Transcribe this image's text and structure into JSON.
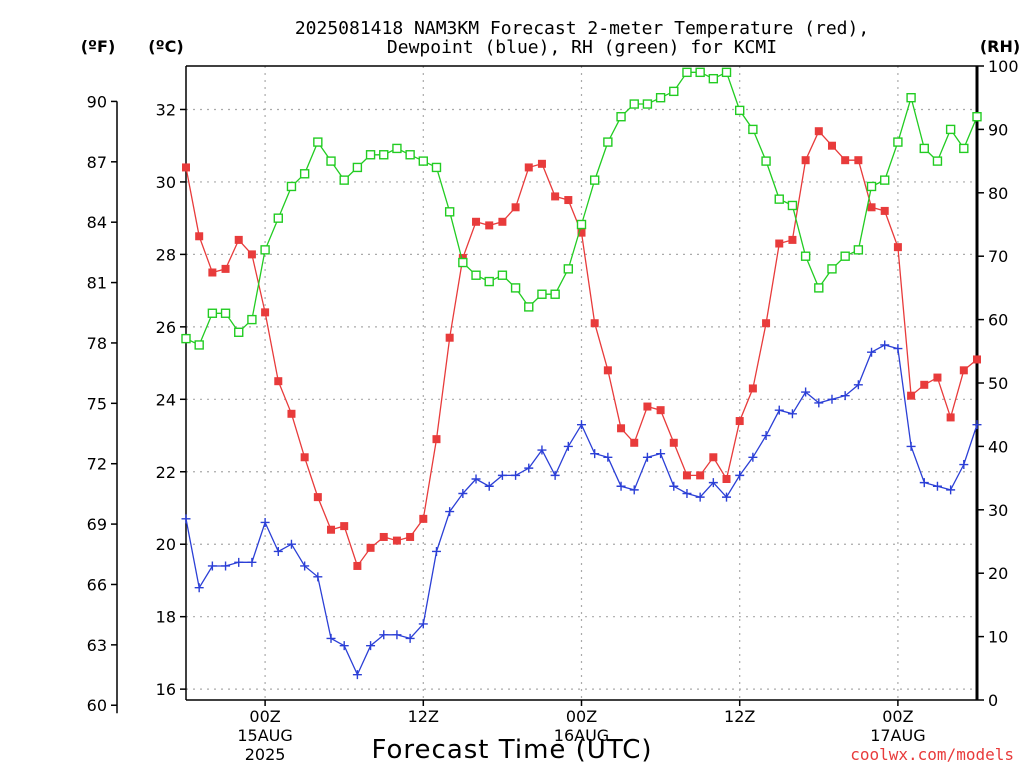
{
  "chart_data": {
    "type": "line",
    "title_line1": "2025081418 NAM3KM Forecast 2-meter Temperature (red),",
    "title_line2": "Dewpoint (blue), RH (green) for KCMI",
    "xlabel": "Forecast Time (UTC)",
    "credit": "coolwx.com/models",
    "left_unit_f": "(ºF)",
    "left_unit_c": "(ºC)",
    "right_unit": "(RH)",
    "f_ticks": [
      "60",
      "63",
      "66",
      "69",
      "72",
      "75",
      "78",
      "81",
      "84",
      "87",
      "90"
    ],
    "c_ticks": [
      "16",
      "18",
      "20",
      "22",
      "24",
      "26",
      "28",
      "30",
      "32"
    ],
    "rh_ticks": [
      "0",
      "10",
      "20",
      "30",
      "40",
      "50",
      "60",
      "70",
      "80",
      "90",
      "100"
    ],
    "x_ticks": [
      {
        "hour": 6,
        "line1": "00Z",
        "line2": "15AUG",
        "line3": "2025"
      },
      {
        "hour": 18,
        "line1": "12Z",
        "line2": "",
        "line3": ""
      },
      {
        "hour": 30,
        "line1": "00Z",
        "line2": "16AUG",
        "line3": ""
      },
      {
        "hour": 42,
        "line1": "12Z",
        "line2": "",
        "line3": ""
      },
      {
        "hour": 54,
        "line1": "00Z",
        "line2": "17AUG",
        "line3": ""
      }
    ],
    "x_unit": "forecast hour from 2025081418",
    "xlim": [
      0,
      60
    ],
    "ylim_c": [
      15.7,
      33.2
    ],
    "ylim_rh": [
      0,
      100
    ],
    "grid": true,
    "colors": {
      "temperature": "#e83b3b",
      "dewpoint": "#2b3fd6",
      "rh": "#22cc22"
    },
    "series": [
      {
        "name": "Temperature",
        "units": "C",
        "marker": "filled-square",
        "color": "#e83b3b",
        "x": [
          0,
          1,
          2,
          3,
          4,
          5,
          6,
          7,
          8,
          9,
          10,
          11,
          12,
          13,
          14,
          15,
          16,
          17,
          18,
          19,
          20,
          21,
          22,
          23,
          24,
          25,
          26,
          27,
          28,
          29,
          30,
          31,
          32,
          33,
          34,
          35,
          36,
          37,
          38,
          39,
          40,
          41,
          42,
          43,
          44,
          45,
          46,
          47,
          48,
          49,
          50,
          51,
          52,
          53,
          54,
          55,
          56,
          57,
          58,
          59,
          60
        ],
        "values": [
          30.4,
          28.5,
          27.5,
          27.6,
          28.4,
          28,
          26.4,
          24.5,
          23.6,
          22.4,
          21.3,
          20.4,
          20.5,
          19.4,
          19.9,
          20.2,
          20.1,
          20.2,
          20.7,
          22.9,
          25.7,
          27.9,
          28.9,
          28.8,
          28.9,
          29.3,
          30.4,
          30.5,
          29.6,
          29.5,
          28.6,
          26.1,
          24.8,
          23.2,
          22.8,
          23.8,
          23.7,
          22.8,
          21.9,
          21.9,
          22.4,
          21.8,
          23.4,
          24.3,
          26.1,
          28.3,
          28.4,
          30.6,
          31.4,
          31.0,
          30.6,
          30.6,
          29.3,
          29.2,
          28.2,
          24.1,
          24.4,
          24.6,
          23.5,
          24.8,
          25.1
        ]
      },
      {
        "name": "Dewpoint",
        "units": "C",
        "marker": "plus",
        "color": "#2b3fd6",
        "x": [
          0,
          1,
          2,
          3,
          4,
          5,
          6,
          7,
          8,
          9,
          10,
          11,
          12,
          13,
          14,
          15,
          16,
          17,
          18,
          19,
          20,
          21,
          22,
          23,
          24,
          25,
          26,
          27,
          28,
          29,
          30,
          31,
          32,
          33,
          34,
          35,
          36,
          37,
          38,
          39,
          40,
          41,
          42,
          43,
          44,
          45,
          46,
          47,
          48,
          49,
          50,
          51,
          52,
          53,
          54,
          55,
          56,
          57,
          58,
          59,
          60
        ],
        "values": [
          20.7,
          18.8,
          19.4,
          19.4,
          19.5,
          19.5,
          20.6,
          19.8,
          20.0,
          19.4,
          19.1,
          17.4,
          17.2,
          16.4,
          17.2,
          17.5,
          17.5,
          17.4,
          17.8,
          19.8,
          20.9,
          21.4,
          21.8,
          21.6,
          21.9,
          21.9,
          22.1,
          22.6,
          21.9,
          22.7,
          23.3,
          22.5,
          22.4,
          21.6,
          21.5,
          22.4,
          22.5,
          21.6,
          21.4,
          21.3,
          21.7,
          21.3,
          21.9,
          22.4,
          23.0,
          23.7,
          23.6,
          24.2,
          23.9,
          24.0,
          24.1,
          24.4,
          25.3,
          25.5,
          25.4,
          22.7,
          21.7,
          21.6,
          21.5,
          22.2,
          23.3
        ]
      },
      {
        "name": "RH",
        "units": "%",
        "marker": "open-square",
        "color": "#22cc22",
        "x": [
          0,
          1,
          2,
          3,
          4,
          5,
          6,
          7,
          8,
          9,
          10,
          11,
          12,
          13,
          14,
          15,
          16,
          17,
          18,
          19,
          20,
          21,
          22,
          23,
          24,
          25,
          26,
          27,
          28,
          29,
          30,
          31,
          32,
          33,
          34,
          35,
          36,
          37,
          38,
          39,
          40,
          41,
          42,
          43,
          44,
          45,
          46,
          47,
          48,
          49,
          50,
          51,
          52,
          53,
          54,
          55,
          56,
          57,
          58,
          59,
          60
        ],
        "values": [
          57,
          56,
          61,
          61,
          58,
          60,
          71,
          76,
          81,
          83,
          88,
          85,
          82,
          84,
          86,
          86,
          87,
          86,
          85,
          84,
          77,
          69,
          67,
          66,
          67,
          65,
          62,
          64,
          64,
          68,
          75,
          82,
          88,
          92,
          94,
          94,
          95,
          96,
          99,
          99,
          98,
          99,
          93,
          90,
          85,
          79,
          78,
          70,
          65,
          68,
          70,
          71,
          81,
          82,
          88,
          95,
          87,
          85,
          90,
          87,
          92
        ]
      }
    ]
  }
}
